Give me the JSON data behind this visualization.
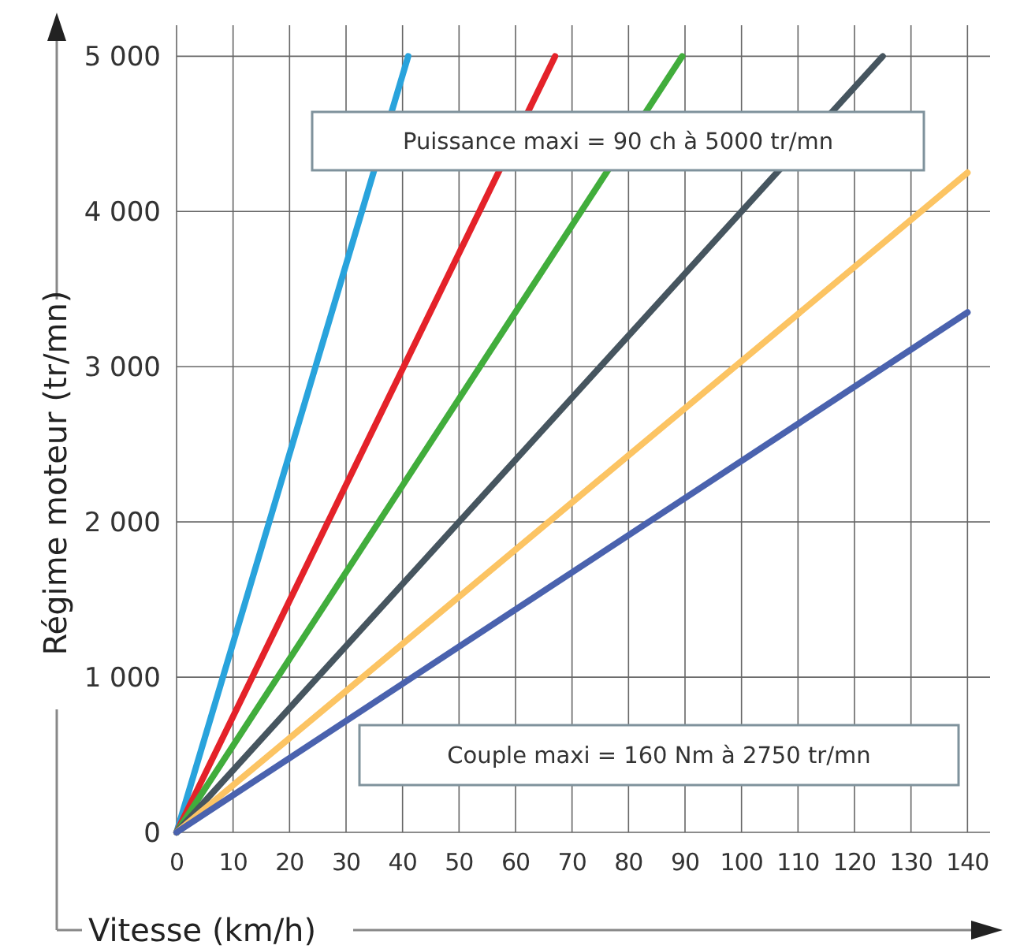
{
  "chart_data": {
    "type": "line",
    "xlabel": "Vitesse (km/h)",
    "ylabel": "Régime moteur (tr/mn)",
    "xlim": [
      0,
      144
    ],
    "ylim": [
      0,
      5200
    ],
    "xticks": [
      0,
      10,
      20,
      30,
      40,
      50,
      60,
      70,
      80,
      90,
      100,
      110,
      120,
      130,
      140
    ],
    "yticks": [
      0,
      {
        "value": 1000,
        "label": "1 000"
      },
      {
        "value": 2000,
        "label": "2 000"
      },
      {
        "value": 3000,
        "label": "3 000"
      },
      {
        "value": 4000,
        "label": "4 000"
      },
      {
        "value": 5000,
        "label": "5 000"
      }
    ],
    "grid": true,
    "marker": "none",
    "line_style": "solid",
    "series": [
      {
        "color": "#29a3dc",
        "x": [
          0,
          41
        ],
        "values": [
          0,
          5000
        ]
      },
      {
        "color": "#e42229",
        "x": [
          0,
          67
        ],
        "values": [
          0,
          5000
        ]
      },
      {
        "color": "#41ad3c",
        "x": [
          0,
          89.5
        ],
        "values": [
          0,
          5000
        ]
      },
      {
        "color": "#46555f",
        "x": [
          0,
          125
        ],
        "values": [
          0,
          5000
        ]
      },
      {
        "color": "#fcc463",
        "x": [
          0,
          140
        ],
        "values": [
          0,
          4250
        ]
      },
      {
        "color": "#4a62ae",
        "x": [
          0,
          140
        ],
        "values": [
          0,
          3350
        ]
      }
    ],
    "annotations": [
      "Puissance maxi = 90 ch à 5000 tr/mn",
      "Couple maxi = 160 Nm à 2750 tr/mn"
    ]
  }
}
